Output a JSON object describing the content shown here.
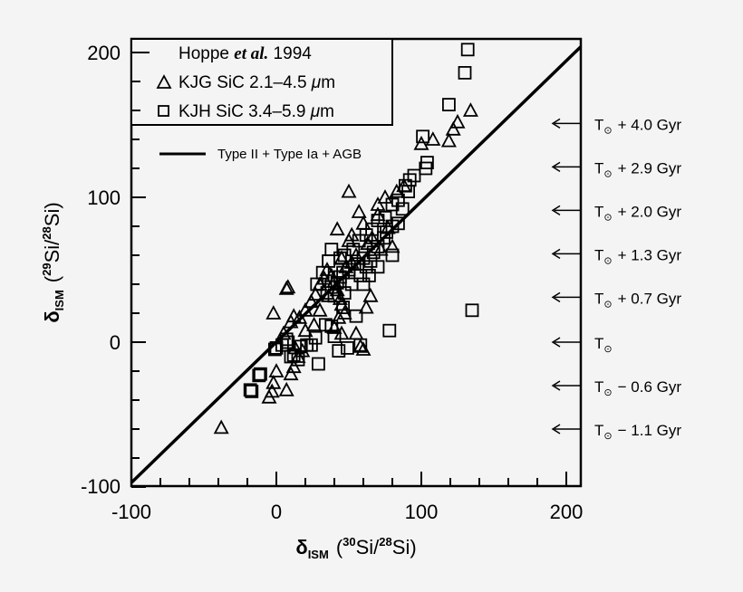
{
  "chart_data": {
    "type": "scatter",
    "title": "",
    "xlabel": "δISM (30Si/28Si)",
    "ylabel": "δISM (29Si/28Si)",
    "xlim": [
      -100,
      210
    ],
    "ylim": [
      -100,
      209
    ],
    "x_ticks": [
      "-100",
      "0",
      "100",
      "200"
    ],
    "y_ticks": [
      "-100",
      "0",
      "100",
      "200"
    ],
    "grid": false,
    "legend_position": "upper-left",
    "legend": {
      "header": "Hoppe et al. 1994",
      "entries": [
        {
          "marker": "triangle",
          "label": "KJG SiC 2.1–4.5 μm"
        },
        {
          "marker": "square",
          "label": "KJH SiC 3.4–5.9 μm"
        }
      ],
      "line_label": "Type II + Type Ia + AGB"
    },
    "series": [
      {
        "name": "KJG SiC 2.1–4.5 μm",
        "marker": "triangle",
        "points": [
          [
            -38,
            -59
          ],
          [
            -5,
            -38
          ],
          [
            -3,
            -34
          ],
          [
            -2,
            -28
          ],
          [
            7,
            -33
          ],
          [
            0,
            -20
          ],
          [
            10,
            -22
          ],
          [
            12,
            -17
          ],
          [
            15,
            -10
          ],
          [
            13,
            -4
          ],
          [
            18,
            -6
          ],
          [
            -2,
            20
          ],
          [
            7,
            37
          ],
          [
            8,
            38
          ],
          [
            12,
            18
          ],
          [
            16,
            17
          ],
          [
            20,
            22
          ],
          [
            24,
            28
          ],
          [
            27,
            33
          ],
          [
            30,
            40
          ],
          [
            33,
            44
          ],
          [
            35,
            50
          ],
          [
            38,
            46
          ],
          [
            40,
            42
          ],
          [
            42,
            36
          ],
          [
            44,
            30
          ],
          [
            45,
            26
          ],
          [
            47,
            20
          ],
          [
            43,
            17
          ],
          [
            40,
            10
          ],
          [
            45,
            6
          ],
          [
            55,
            6
          ],
          [
            60,
            -5
          ],
          [
            58,
            -3
          ],
          [
            62,
            24
          ],
          [
            65,
            32
          ],
          [
            50,
            104
          ],
          [
            57,
            90
          ],
          [
            60,
            82
          ],
          [
            70,
            95
          ],
          [
            75,
            100
          ],
          [
            83,
            104
          ],
          [
            88,
            108
          ],
          [
            70,
            88
          ],
          [
            77,
            79
          ],
          [
            63,
            68
          ],
          [
            55,
            60
          ],
          [
            52,
            55
          ],
          [
            48,
            52
          ],
          [
            45,
            58
          ],
          [
            42,
            78
          ],
          [
            50,
            70
          ],
          [
            52,
            74
          ],
          [
            100,
            137
          ],
          [
            108,
            140
          ],
          [
            119,
            139
          ],
          [
            122,
            147
          ],
          [
            125,
            152
          ],
          [
            134,
            160
          ],
          [
            66,
            72
          ],
          [
            72,
            64
          ],
          [
            80,
            66
          ],
          [
            36,
            32
          ],
          [
            30,
            22
          ],
          [
            26,
            12
          ],
          [
            20,
            8
          ],
          [
            10,
            14
          ],
          [
            5,
            6
          ]
        ]
      },
      {
        "name": "KJH SiC 3.4–5.9 μm",
        "marker": "square",
        "points": [
          [
            -17,
            -34
          ],
          [
            -18,
            -33
          ],
          [
            -12,
            -23
          ],
          [
            -11,
            -22
          ],
          [
            -1,
            -5
          ],
          [
            0,
            -4
          ],
          [
            4,
            -2
          ],
          [
            7,
            2
          ],
          [
            8,
            0
          ],
          [
            10,
            -10
          ],
          [
            12,
            -9
          ],
          [
            15,
            -12
          ],
          [
            17,
            -3
          ],
          [
            21,
            -2
          ],
          [
            24,
            -2
          ],
          [
            27,
            3
          ],
          [
            29,
            -15
          ],
          [
            34,
            12
          ],
          [
            38,
            11
          ],
          [
            40,
            4
          ],
          [
            43,
            -6
          ],
          [
            49,
            -4
          ],
          [
            58,
            -2
          ],
          [
            78,
            8
          ],
          [
            135,
            22
          ],
          [
            60,
            58
          ],
          [
            56,
            54
          ],
          [
            50,
            50
          ],
          [
            46,
            48
          ],
          [
            44,
            45
          ],
          [
            42,
            41
          ],
          [
            38,
            38
          ],
          [
            35,
            34
          ],
          [
            40,
            32
          ],
          [
            47,
            34
          ],
          [
            52,
            40
          ],
          [
            58,
            46
          ],
          [
            62,
            52
          ],
          [
            65,
            56
          ],
          [
            67,
            62
          ],
          [
            70,
            66
          ],
          [
            74,
            72
          ],
          [
            76,
            76
          ],
          [
            80,
            80
          ],
          [
            84,
            82
          ],
          [
            87,
            92
          ],
          [
            89,
            108
          ],
          [
            92,
            112
          ],
          [
            95,
            115
          ],
          [
            91,
            104
          ],
          [
            84,
            98
          ],
          [
            80,
            95
          ],
          [
            75,
            86
          ],
          [
            70,
            84
          ],
          [
            66,
            78
          ],
          [
            62,
            74
          ],
          [
            57,
            70
          ],
          [
            53,
            64
          ],
          [
            47,
            60
          ],
          [
            44,
            58
          ],
          [
            38,
            64
          ],
          [
            36,
            56
          ],
          [
            32,
            48
          ],
          [
            28,
            40
          ],
          [
            60,
            40
          ],
          [
            64,
            46
          ],
          [
            70,
            52
          ],
          [
            80,
            60
          ],
          [
            55,
            18
          ],
          [
            46,
            24
          ],
          [
            103,
            120
          ],
          [
            104,
            124
          ],
          [
            101,
            142
          ],
          [
            119,
            164
          ],
          [
            130,
            186
          ],
          [
            132,
            202
          ]
        ]
      }
    ],
    "model_line": {
      "label": "Type II + Type Ia + AGB",
      "points": [
        [
          -100,
          -97
        ],
        [
          210,
          204
        ]
      ]
    },
    "right_annotations": [
      {
        "y": 151,
        "label": "T⊙ + 4.0 Gyr"
      },
      {
        "y": 121,
        "label": "T⊙ + 2.9 Gyr"
      },
      {
        "y": 91,
        "label": "T⊙ + 2.0 Gyr"
      },
      {
        "y": 61,
        "label": "T⊙ + 1.3 Gyr"
      },
      {
        "y": 31,
        "label": "T⊙ + 0.7 Gyr"
      },
      {
        "y": 0,
        "label": "T⊙"
      },
      {
        "y": -30,
        "label": "T⊙ − 0.6 Gyr"
      },
      {
        "y": -60,
        "label": "T⊙ − 1.1 Gyr"
      }
    ]
  },
  "labels": {
    "legend_header_pre": "Hoppe ",
    "legend_header_italic": "et al.",
    "legend_header_post": " 1994",
    "legend_entry_1_a": "KJG  SiC  2.1–4.5  ",
    "legend_entry_2_a": "KJH  SiC  3.4–5.9  ",
    "mu": "μ",
    "m": "m",
    "line_label": "Type II + Type Ia + AGB",
    "x_tick_m100": "-100",
    "x_tick_0": "0",
    "x_tick_100": "100",
    "x_tick_200": "200",
    "y_tick_m100": "-100",
    "y_tick_0": "0",
    "y_tick_100": "100",
    "y_tick_200": "200",
    "delta": "δ",
    "ism": "ISM",
    "x_iso_num": "30",
    "y_iso_num": "29",
    "den_iso": "28",
    "si": "Si",
    "ann_t": "T",
    "ann_sun": "⊙",
    "ann_1": "+  4.0  Gyr",
    "ann_2": "+  2.9  Gyr",
    "ann_3": "+  2.0  Gyr",
    "ann_4": "+  1.3  Gyr",
    "ann_5": "+  0.7  Gyr",
    "ann_6": "",
    "ann_7": "−  0.6  Gyr",
    "ann_8": "−  1.1  Gyr"
  }
}
